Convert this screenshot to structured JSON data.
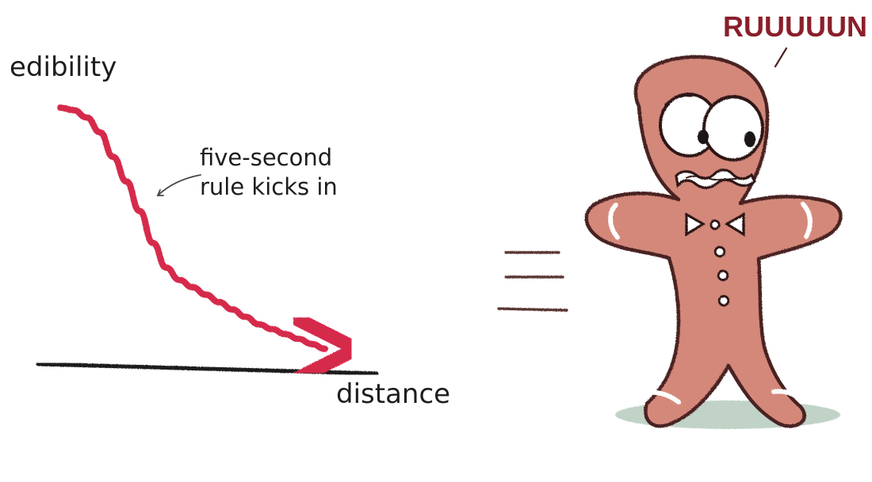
{
  "chart_data": {
    "type": "line",
    "title": "",
    "xlabel": "distance",
    "ylabel": "edibility",
    "grid": false,
    "x": [
      0,
      5,
      10,
      15,
      20,
      25,
      30,
      35,
      40,
      45,
      50,
      55,
      60,
      65,
      70,
      75,
      80,
      85,
      90,
      95,
      100
    ],
    "series": [
      {
        "values": [
          100,
          99,
          96,
          90,
          80,
          70,
          58,
          45,
          35,
          30,
          27,
          24,
          21,
          18,
          15,
          12,
          10,
          8,
          6,
          4,
          2
        ]
      }
    ],
    "annotations": [
      {
        "line1": "five-second",
        "line2": "rule kicks in"
      }
    ],
    "colors": {
      "line": "#d62b4c",
      "axis": "#1a1a1f"
    }
  },
  "illustration": {
    "speech_text": "RUUUUUN",
    "colors": {
      "body": "#d4887a",
      "outline": "#4a2420",
      "speech": "#8a1f2a",
      "shadow": "#b8cdbf"
    }
  }
}
